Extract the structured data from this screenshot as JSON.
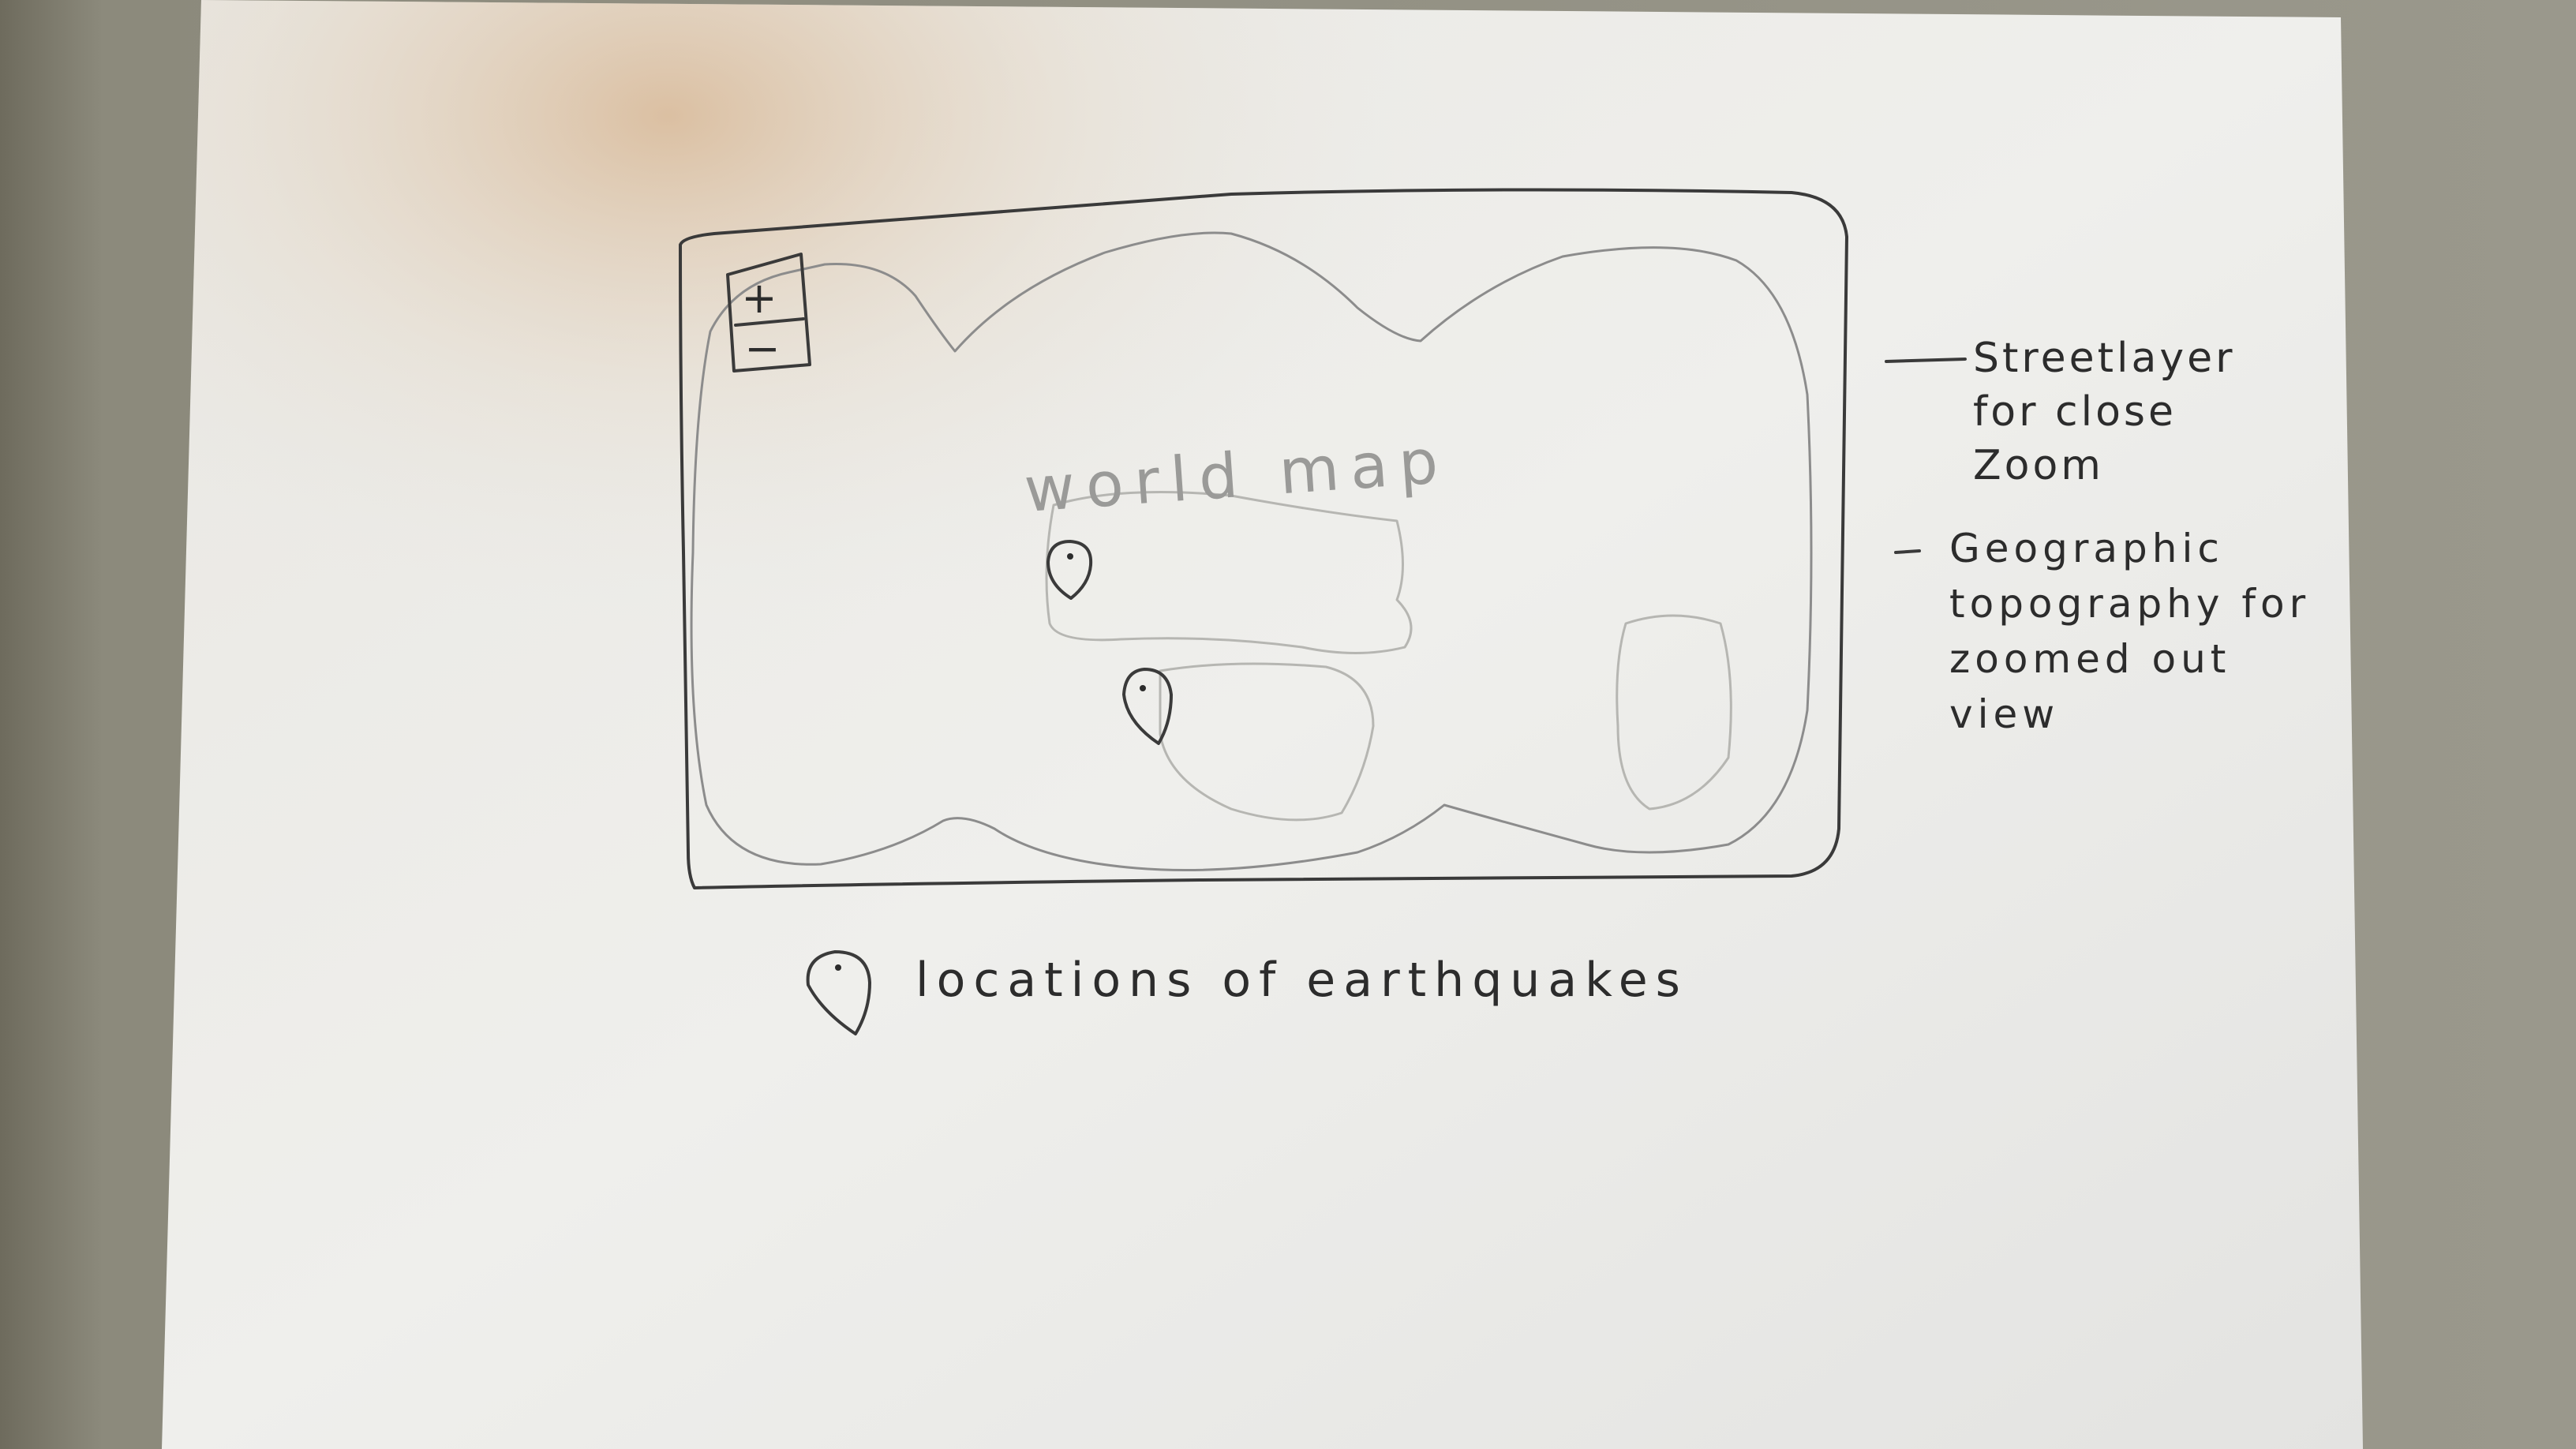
{
  "sketch": {
    "map_label": "world map",
    "zoom_in_label": "+",
    "zoom_out_label": "−",
    "annotations": [
      "Streetlayer for close Zoom",
      "Geographic topography for zoomed out view"
    ],
    "legend_text": "locations of earthquakes"
  }
}
